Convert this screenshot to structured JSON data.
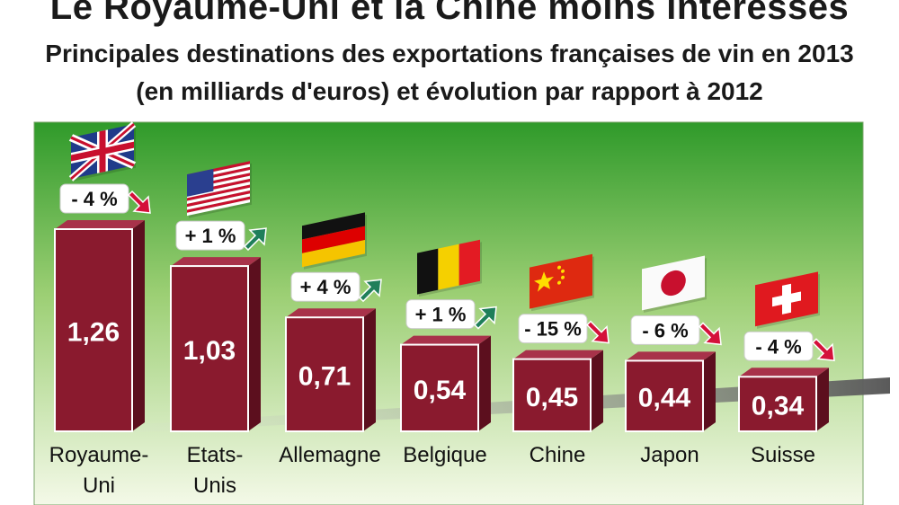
{
  "chart_data": {
    "type": "bar",
    "title": "Le Royaume-Uni et la Chine moins intéressés",
    "subtitle_line1": "Principales destinations des exportations françaises de vin en 2013",
    "subtitle_line2": "(en milliards d'euros) et évolution par rapport à 2012",
    "categories": [
      {
        "line1": "Royaume-",
        "line2": "Uni"
      },
      {
        "line1": "Etats-",
        "line2": "Unis"
      },
      {
        "line1": "Allemagne",
        "line2": ""
      },
      {
        "line1": "Belgique",
        "line2": ""
      },
      {
        "line1": "Chine",
        "line2": ""
      },
      {
        "line1": "Japon",
        "line2": ""
      },
      {
        "line1": "Suisse",
        "line2": ""
      }
    ],
    "values": [
      1.26,
      1.03,
      0.71,
      0.54,
      0.45,
      0.44,
      0.34
    ],
    "value_labels": [
      "1,26",
      "1,03",
      "0,71",
      "0,54",
      "0,45",
      "0,44",
      "0,34"
    ],
    "change_labels": [
      "- 4 %",
      "+ 1 %",
      "+ 4 %",
      "+ 1 %",
      "- 15 %",
      "- 6 %",
      "- 4 %"
    ],
    "change_direction": [
      "down",
      "up",
      "up",
      "up",
      "down",
      "down",
      "down"
    ],
    "flag_icons": [
      "uk-flag-icon",
      "usa-flag-icon",
      "germany-flag-icon",
      "belgium-flag-icon",
      "china-flag-icon",
      "japan-flag-icon",
      "switzerland-flag-icon"
    ],
    "colors": {
      "bar": "#8a1a2e",
      "background_top": "#2f9a2a",
      "background_bottom": "#f2f8e6",
      "arrow_up": "#1f7f5a",
      "arrow_down": "#d4103a"
    }
  }
}
